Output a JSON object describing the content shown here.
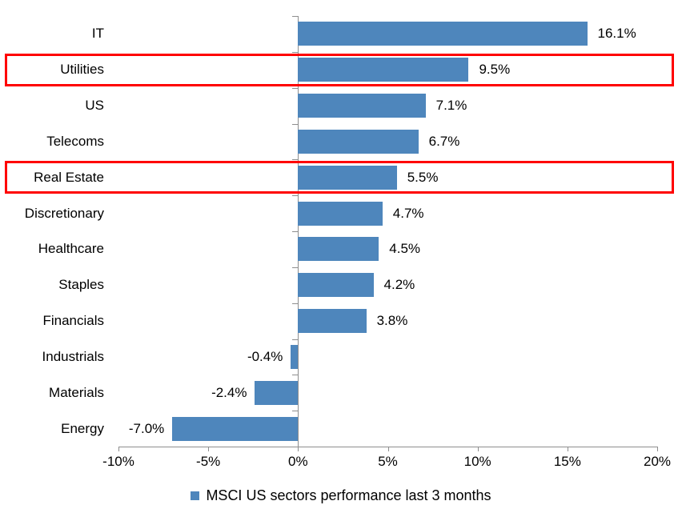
{
  "chart_data": {
    "type": "bar",
    "orientation": "horizontal",
    "title": "",
    "categories": [
      "IT",
      "Utilities",
      "US",
      "Telecoms",
      "Real Estate",
      "Discretionary",
      "Healthcare",
      "Staples",
      "Financials",
      "Industrials",
      "Materials",
      "Energy"
    ],
    "values": [
      16.1,
      9.5,
      7.1,
      6.7,
      5.5,
      4.7,
      4.5,
      4.2,
      3.8,
      -0.4,
      -2.4,
      -7.0
    ],
    "value_labels": [
      "16.1%",
      "9.5%",
      "7.1%",
      "6.7%",
      "5.5%",
      "4.7%",
      "4.5%",
      "4.2%",
      "3.8%",
      "-0.4%",
      "-2.4%",
      "-7.0%"
    ],
    "x_axis": {
      "tick_labels": [
        "-10%",
        "-5%",
        "0%",
        "5%",
        "10%",
        "15%",
        "20%"
      ],
      "tick_values": [
        -10,
        -5,
        0,
        5,
        10,
        15,
        20
      ],
      "range": [
        -10,
        20
      ]
    },
    "legend": {
      "label": "MSCI US sectors performance last 3 months",
      "position": "bottom"
    },
    "highlighted_categories": [
      "Utilities",
      "Real Estate"
    ],
    "colors": {
      "bar": "#4E86BC",
      "highlight_box": "#FF0000",
      "axis": "#8E8E8E",
      "text": "#000000",
      "background": "#FFFFFF"
    },
    "grid": false
  }
}
